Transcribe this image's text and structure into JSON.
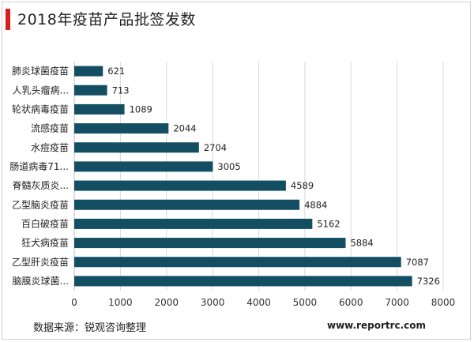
{
  "header": {
    "title": "2018年疫苗产品批签发数"
  },
  "footer": {
    "source": "数据来源：锐观咨询整理",
    "website": "www.reportrc.com"
  },
  "colors": {
    "bar": "#134e62",
    "accent": "#d81e1e",
    "grid": "#d9d9d9"
  },
  "chart_data": {
    "type": "bar",
    "orientation": "horizontal",
    "title": "2018年疫苗产品批签发数",
    "xlabel": "",
    "ylabel": "",
    "xlim": [
      0,
      8000
    ],
    "xticks": [
      0,
      1000,
      2000,
      3000,
      4000,
      5000,
      6000,
      7000,
      8000
    ],
    "grid": true,
    "legend": "none",
    "categories": [
      "肺炎球菌疫苗",
      "人乳头瘤病...",
      "轮状病毒疫苗",
      "流感疫苗",
      "水痘疫苗",
      "肠道病毒71...",
      "脊髓灰质炎...",
      "乙型脑炎疫苗",
      "百白破疫苗",
      "狂犬病疫苗",
      "乙型肝炎疫苗",
      "脑膜炎球菌..."
    ],
    "values": [
      621,
      713,
      1089,
      2044,
      2704,
      3005,
      4589,
      4884,
      5162,
      5884,
      7087,
      7326
    ]
  }
}
